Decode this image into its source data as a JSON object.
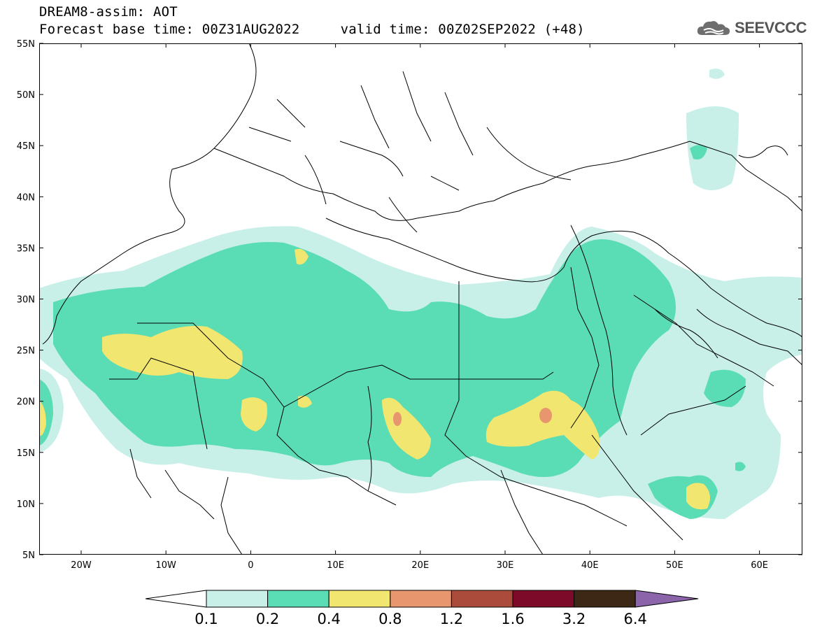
{
  "header": {
    "title_line1": "DREAM8-assim: AOT",
    "title_line2": "Forecast base time: 00Z31AUG2022     valid time: 00Z02SEP2022 (+48)",
    "logo_text": "SEEVCCC"
  },
  "map": {
    "lat_labels": [
      "55N",
      "50N",
      "45N",
      "40N",
      "35N",
      "30N",
      "25N",
      "20N",
      "15N",
      "10N",
      "5N"
    ],
    "lon_labels": [
      "20W",
      "10W",
      "0",
      "10E",
      "20E",
      "30E",
      "40E",
      "50E",
      "60E"
    ]
  },
  "legend": {
    "levels": [
      "0.1",
      "0.2",
      "0.4",
      "0.8",
      "1.2",
      "1.6",
      "3.2",
      "6.4"
    ],
    "colors": {
      "under": "#ffffff",
      "c1": "#c8f0e8",
      "c2": "#5adcb4",
      "c3": "#f0e670",
      "c4": "#e8966e",
      "c5": "#aa4b3c",
      "c6": "#7d0a28",
      "c7": "#3c2814",
      "over": "#8c64aa"
    }
  }
}
